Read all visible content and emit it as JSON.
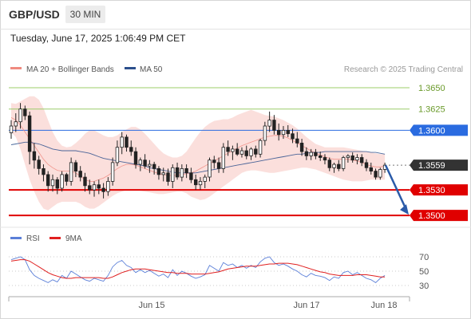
{
  "header": {
    "symbol": "GBP/USD",
    "timeframe": "30 MIN",
    "datetime": "Tuesday, June 17, 2025 1:06:49 PM CET"
  },
  "legend": {
    "items": [
      {
        "label": "MA 20 + Bollinger Bands",
        "color": "#f08a80"
      },
      {
        "label": "MA 50",
        "color": "#2c4f8c"
      }
    ],
    "credit": "Research © 2025 Trading Central"
  },
  "chart_data": [
    {
      "type": "candlestick",
      "title": "GBP/USD",
      "ylim": [
        1.3487,
        1.3665
      ],
      "x_ticks": [
        "Jun 15",
        "Jun 17",
        "Jun 18"
      ],
      "levels": [
        {
          "value": 1.365,
          "label": "1.3650",
          "style": "green-line"
        },
        {
          "value": 1.3625,
          "label": "1.3625",
          "style": "green-line"
        },
        {
          "value": 1.36,
          "label": "1.3600",
          "style": "blue-box"
        },
        {
          "value": 1.3559,
          "label": "1.3559",
          "style": "current-price"
        },
        {
          "value": 1.353,
          "label": "1.3530",
          "style": "red-box"
        },
        {
          "value": 1.35,
          "label": "1.3500",
          "style": "red-box"
        }
      ],
      "candles": [
        [
          1.3597,
          1.3612,
          1.359,
          1.3605
        ],
        [
          1.3605,
          1.362,
          1.3598,
          1.361
        ],
        [
          1.361,
          1.3632,
          1.3602,
          1.3625
        ],
        [
          1.3625,
          1.3629,
          1.3612,
          1.3617
        ],
        [
          1.3617,
          1.3622,
          1.356,
          1.3575
        ],
        [
          1.3575,
          1.3585,
          1.3555,
          1.3565
        ],
        [
          1.3565,
          1.357,
          1.3548,
          1.3555
        ],
        [
          1.3555,
          1.356,
          1.354,
          1.3548
        ],
        [
          1.3548,
          1.3552,
          1.3528,
          1.3535
        ],
        [
          1.3535,
          1.3548,
          1.3528,
          1.3542
        ],
        [
          1.3542,
          1.3545,
          1.3525,
          1.3532
        ],
        [
          1.3532,
          1.3552,
          1.3528,
          1.3548
        ],
        [
          1.3548,
          1.355,
          1.3535,
          1.354
        ],
        [
          1.354,
          1.3568,
          1.3535,
          1.3562
        ],
        [
          1.3562,
          1.3565,
          1.3545,
          1.3552
        ],
        [
          1.3552,
          1.3558,
          1.354,
          1.3545
        ],
        [
          1.3545,
          1.355,
          1.3528,
          1.3535
        ],
        [
          1.3535,
          1.3542,
          1.3525,
          1.353
        ],
        [
          1.353,
          1.354,
          1.3522,
          1.3536
        ],
        [
          1.3536,
          1.3542,
          1.3525,
          1.3532
        ],
        [
          1.3532,
          1.3538,
          1.352,
          1.3528
        ],
        [
          1.3528,
          1.3545,
          1.3523,
          1.354
        ],
        [
          1.354,
          1.3568,
          1.3535,
          1.3562
        ],
        [
          1.3562,
          1.3588,
          1.3558,
          1.358
        ],
        [
          1.358,
          1.3598,
          1.3572,
          1.3592
        ],
        [
          1.3592,
          1.3595,
          1.3575,
          1.358
        ],
        [
          1.358,
          1.3588,
          1.357,
          1.3575
        ],
        [
          1.3575,
          1.358,
          1.3555,
          1.356
        ],
        [
          1.356,
          1.3568,
          1.3552,
          1.3565
        ],
        [
          1.3565,
          1.3572,
          1.3555,
          1.3558
        ],
        [
          1.3558,
          1.3565,
          1.355,
          1.356
        ],
        [
          1.356,
          1.3563,
          1.3548,
          1.3555
        ],
        [
          1.3555,
          1.3558,
          1.3542,
          1.3548
        ],
        [
          1.3548,
          1.3556,
          1.354,
          1.355
        ],
        [
          1.355,
          1.3555,
          1.3535,
          1.354
        ],
        [
          1.354,
          1.356,
          1.3532,
          1.3556
        ],
        [
          1.3556,
          1.3562,
          1.3542,
          1.3545
        ],
        [
          1.3545,
          1.356,
          1.354,
          1.3555
        ],
        [
          1.3555,
          1.356,
          1.3544,
          1.355
        ],
        [
          1.355,
          1.3556,
          1.3538,
          1.3542
        ],
        [
          1.3542,
          1.3548,
          1.353,
          1.3536
        ],
        [
          1.3536,
          1.3545,
          1.353,
          1.354
        ],
        [
          1.354,
          1.3548,
          1.3532,
          1.3545
        ],
        [
          1.3545,
          1.3568,
          1.354,
          1.3565
        ],
        [
          1.3565,
          1.357,
          1.3555,
          1.3562
        ],
        [
          1.3562,
          1.3568,
          1.355,
          1.3555
        ],
        [
          1.3555,
          1.3585,
          1.355,
          1.358
        ],
        [
          1.358,
          1.3588,
          1.357,
          1.3575
        ],
        [
          1.3575,
          1.3582,
          1.3565,
          1.3578
        ],
        [
          1.3578,
          1.3585,
          1.357,
          1.3572
        ],
        [
          1.3572,
          1.358,
          1.3568,
          1.3576
        ],
        [
          1.3576,
          1.3582,
          1.3566,
          1.357
        ],
        [
          1.357,
          1.358,
          1.3565,
          1.3578
        ],
        [
          1.3578,
          1.3582,
          1.3568,
          1.3572
        ],
        [
          1.3572,
          1.359,
          1.3568,
          1.3588
        ],
        [
          1.3588,
          1.361,
          1.3582,
          1.3605
        ],
        [
          1.3605,
          1.3622,
          1.3598,
          1.3612
        ],
        [
          1.3612,
          1.3618,
          1.3595,
          1.36
        ],
        [
          1.36,
          1.3608,
          1.3588,
          1.3595
        ],
        [
          1.3595,
          1.3605,
          1.359,
          1.36
        ],
        [
          1.36,
          1.3606,
          1.3592,
          1.3596
        ],
        [
          1.3596,
          1.3602,
          1.3585,
          1.359
        ],
        [
          1.359,
          1.3598,
          1.358,
          1.3585
        ],
        [
          1.3585,
          1.359,
          1.357,
          1.3575
        ],
        [
          1.3575,
          1.358,
          1.3565,
          1.357
        ],
        [
          1.357,
          1.3578,
          1.3565,
          1.3574
        ],
        [
          1.3574,
          1.3578,
          1.3566,
          1.357
        ],
        [
          1.357,
          1.3575,
          1.3564,
          1.3568
        ],
        [
          1.3568,
          1.3572,
          1.356,
          1.3565
        ],
        [
          1.3565,
          1.3568,
          1.3552,
          1.3556
        ],
        [
          1.3556,
          1.3562,
          1.355,
          1.356
        ],
        [
          1.356,
          1.3565,
          1.3552,
          1.3555
        ],
        [
          1.3555,
          1.357,
          1.3552,
          1.3568
        ],
        [
          1.3568,
          1.3572,
          1.3562,
          1.357
        ],
        [
          1.357,
          1.3574,
          1.3562,
          1.3565
        ],
        [
          1.3565,
          1.3572,
          1.356,
          1.3568
        ],
        [
          1.3568,
          1.3572,
          1.3558,
          1.3562
        ],
        [
          1.3562,
          1.3566,
          1.3552,
          1.3556
        ],
        [
          1.3556,
          1.3562,
          1.3548,
          1.3552
        ],
        [
          1.3552,
          1.3555,
          1.3542,
          1.3545
        ],
        [
          1.3545,
          1.3556,
          1.3542,
          1.3554
        ],
        [
          1.3554,
          1.3562,
          1.355,
          1.3559
        ]
      ],
      "series": [
        {
          "name": "MA 20",
          "role": "middle-band",
          "color": "#f08a80",
          "values": [
            1.3615,
            1.3612,
            1.3606,
            1.3598,
            1.359,
            1.3582,
            1.3574,
            1.3566,
            1.356,
            1.3556,
            1.3553,
            1.3552,
            1.3552,
            1.3552,
            1.355,
            1.3546,
            1.3542,
            1.354,
            1.354,
            1.3542,
            1.3544,
            1.3547,
            1.3551,
            1.3555,
            1.3558,
            1.356,
            1.356,
            1.3559,
            1.3557,
            1.3555,
            1.3553,
            1.3551,
            1.3549,
            1.3548,
            1.3547,
            1.3547,
            1.3547,
            1.3548,
            1.3549,
            1.355,
            1.3552,
            1.3555,
            1.3558,
            1.3561,
            1.3564,
            1.3567,
            1.357,
            1.3573,
            1.3576,
            1.3579,
            1.3582,
            1.3584,
            1.3586,
            1.3588,
            1.359,
            1.3592,
            1.3593,
            1.3594,
            1.3594,
            1.3593,
            1.3591,
            1.3588,
            1.3585,
            1.3582,
            1.3579,
            1.3576,
            1.3573,
            1.3571,
            1.3569,
            1.3567,
            1.3566,
            1.3566,
            1.3566,
            1.3566,
            1.3565,
            1.3564,
            1.3562,
            1.356,
            1.3558,
            1.3557,
            1.3557,
            1.3558
          ]
        },
        {
          "name": "Bollinger upper",
          "role": "upper-band",
          "color": "#f08a80",
          "values": [
            1.3632,
            1.3631,
            1.3634,
            1.3637,
            1.364,
            1.364,
            1.3636,
            1.3626,
            1.3612,
            1.3598,
            1.3588,
            1.3582,
            1.358,
            1.3581,
            1.3585,
            1.359,
            1.3596,
            1.36,
            1.36,
            1.3597,
            1.3594,
            1.3592,
            1.3592,
            1.3594,
            1.3598,
            1.3601,
            1.3604,
            1.3604,
            1.3601,
            1.3596,
            1.359,
            1.3584,
            1.3578,
            1.3573,
            1.357,
            1.3568,
            1.3568,
            1.357,
            1.3575,
            1.3583,
            1.3591,
            1.3598,
            1.3604,
            1.3608,
            1.3611,
            1.3612,
            1.3613,
            1.3613,
            1.3615,
            1.3618,
            1.362,
            1.3622,
            1.3624,
            1.3622,
            1.362,
            1.3618,
            1.3617,
            1.3616,
            1.3614,
            1.3612,
            1.3609,
            1.3606,
            1.3602,
            1.3597,
            1.3592,
            1.3588,
            1.3584,
            1.3582,
            1.358,
            1.358,
            1.358,
            1.358,
            1.358,
            1.3579,
            1.3578,
            1.3577,
            1.3576,
            1.3575,
            1.3574,
            1.3573,
            1.3572,
            1.3572
          ]
        },
        {
          "name": "Bollinger lower",
          "role": "lower-band",
          "color": "#f08a80",
          "values": [
            1.3598,
            1.3592,
            1.3578,
            1.356,
            1.3542,
            1.3528,
            1.3516,
            1.3508,
            1.3506,
            1.351,
            1.3514,
            1.3516,
            1.3516,
            1.3516,
            1.3516,
            1.3514,
            1.351,
            1.3508,
            1.3508,
            1.3511,
            1.3515,
            1.3519,
            1.3523,
            1.3526,
            1.3528,
            1.353,
            1.353,
            1.353,
            1.3529,
            1.3528,
            1.3527,
            1.3526,
            1.3525,
            1.3525,
            1.3526,
            1.3527,
            1.3528,
            1.3528,
            1.3526,
            1.3522,
            1.352,
            1.3518,
            1.3519,
            1.3522,
            1.3526,
            1.353,
            1.3534,
            1.3538,
            1.3542,
            1.3546,
            1.355,
            1.3552,
            1.3553,
            1.3553,
            1.3552,
            1.3551,
            1.355,
            1.355,
            1.3551,
            1.3552,
            1.3553,
            1.3554,
            1.3555,
            1.3556,
            1.3556,
            1.3555,
            1.3554,
            1.3552,
            1.355,
            1.3548,
            1.3546,
            1.3544,
            1.3542,
            1.3541,
            1.354,
            1.354,
            1.354,
            1.3541,
            1.3542,
            1.3542,
            1.3542,
            1.3542
          ]
        },
        {
          "name": "MA 50",
          "role": "ma50",
          "color": "#2c4f8c",
          "values": [
            1.3583,
            1.3584,
            1.3585,
            1.3586,
            1.3586,
            1.3585,
            1.3584,
            1.3582,
            1.358,
            1.3578,
            1.3577,
            1.3576,
            1.3576,
            1.3576,
            1.3576,
            1.3575,
            1.3574,
            1.3573,
            1.3571,
            1.3569,
            1.3567,
            1.3566,
            1.3565,
            1.3564,
            1.3563,
            1.3562,
            1.3561,
            1.356,
            1.3559,
            1.3558,
            1.3556,
            1.3555,
            1.3554,
            1.3553,
            1.3552,
            1.3551,
            1.355,
            1.355,
            1.355,
            1.355,
            1.355,
            1.3551,
            1.3552,
            1.3553,
            1.3554,
            1.3555,
            1.3556,
            1.3557,
            1.3558,
            1.3559,
            1.356,
            1.3561,
            1.3562,
            1.3563,
            1.3564,
            1.3565,
            1.3566,
            1.3567,
            1.3568,
            1.3569,
            1.357,
            1.3571,
            1.3572,
            1.3572,
            1.3573,
            1.3574,
            1.3574,
            1.3574,
            1.3575,
            1.3575,
            1.3575,
            1.3575,
            1.3575,
            1.3575,
            1.3575,
            1.3575,
            1.3575,
            1.3575,
            1.3574,
            1.3574,
            1.3573,
            1.3572
          ]
        }
      ],
      "forecast_arrow": {
        "from": 1.3559,
        "to": 1.35,
        "color": "#2a5aa8"
      }
    },
    {
      "type": "line",
      "title": "RSI",
      "ylim": [
        20,
        80
      ],
      "y_ticks": [
        70,
        50,
        30
      ],
      "series": [
        {
          "name": "RSI",
          "color": "#5b7fd8",
          "values": [
            66,
            68,
            70,
            66,
            52,
            44,
            40,
            37,
            34,
            38,
            35,
            44,
            40,
            50,
            46,
            42,
            38,
            36,
            40,
            38,
            36,
            44,
            56,
            62,
            65,
            58,
            55,
            48,
            52,
            48,
            51,
            47,
            43,
            46,
            41,
            52,
            44,
            50,
            47,
            43,
            40,
            42,
            45,
            58,
            54,
            50,
            62,
            58,
            60,
            55,
            58,
            54,
            58,
            55,
            63,
            68,
            70,
            62,
            58,
            60,
            57,
            53,
            50,
            45,
            42,
            47,
            44,
            43,
            41,
            37,
            42,
            40,
            48,
            50,
            45,
            48,
            44,
            40,
            38,
            34,
            40,
            44
          ]
        },
        {
          "name": "9MA",
          "color": "#e02020",
          "values": [
            64,
            65,
            66,
            66,
            64,
            60,
            56,
            52,
            48,
            45,
            43,
            41,
            40,
            40,
            41,
            41,
            41,
            41,
            41,
            41,
            40,
            40,
            42,
            45,
            48,
            50,
            52,
            53,
            53,
            53,
            52,
            51,
            50,
            49,
            48,
            48,
            47,
            47,
            47,
            46,
            46,
            46,
            46,
            47,
            48,
            49,
            51,
            53,
            54,
            55,
            56,
            57,
            57,
            57,
            58,
            59,
            60,
            60,
            61,
            61,
            61,
            60,
            59,
            57,
            55,
            53,
            51,
            49,
            48,
            46,
            45,
            44,
            44,
            44,
            44,
            45,
            45,
            45,
            44,
            43,
            42,
            42
          ]
        }
      ]
    }
  ],
  "rsi_legend": [
    {
      "label": "RSI",
      "color": "#5b7fd8"
    },
    {
      "label": "9MA",
      "color": "#e02020"
    }
  ]
}
